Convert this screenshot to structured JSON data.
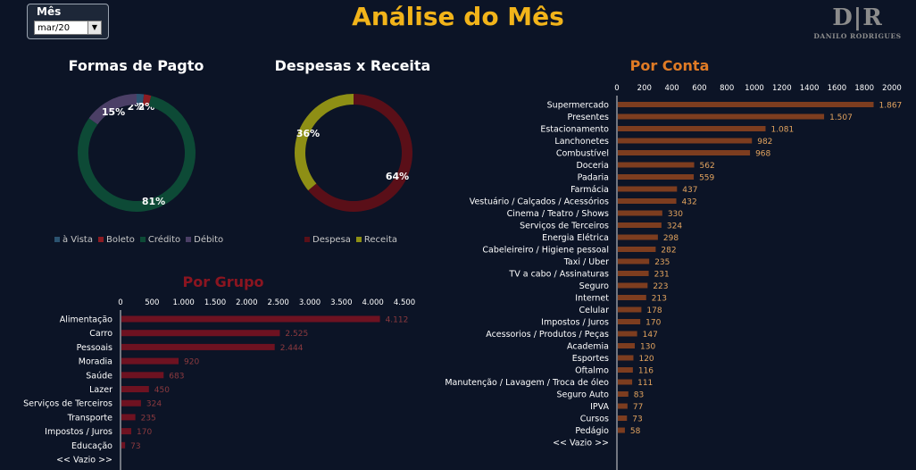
{
  "filter": {
    "label": "Mês",
    "value": "mar/20"
  },
  "title": "Análise do Mês",
  "logo": {
    "mark": "D|R",
    "name": "DANILO RODRIGUES"
  },
  "colors": {
    "title": "#f2b41a",
    "conta_title": "#e07b25",
    "grupo_title": "#8b1520",
    "conta_bar": "#7d3d1f",
    "conta_label": "#e3a45f",
    "grupo_bar": "#6e1221",
    "grupo_label": "#8c3a3f"
  },
  "chart_data": [
    {
      "type": "pie",
      "title": "Formas de Pagto",
      "donut": true,
      "labels": [
        "à Vista",
        "Boleto",
        "Crédito",
        "Débito"
      ],
      "values": [
        2,
        2,
        81,
        15
      ],
      "value_labels": [
        "2%",
        "2%",
        "81%",
        "15%"
      ],
      "colors": [
        "#2b5370",
        "#8c1b22",
        "#0d4a36",
        "#4b3f66"
      ],
      "legend": "bottom"
    },
    {
      "type": "pie",
      "title": "Despesas x Receita",
      "donut": true,
      "labels": [
        "Despesa",
        "Receita"
      ],
      "values": [
        64,
        36
      ],
      "value_labels": [
        "64%",
        "36%"
      ],
      "colors": [
        "#5a0f18",
        "#8e8f15"
      ],
      "legend": "bottom"
    },
    {
      "type": "bar",
      "orientation": "horizontal",
      "title": "Por Conta",
      "xlim": [
        0,
        2000
      ],
      "xticks": [
        "0",
        "200",
        "400",
        "600",
        "800",
        "1000",
        "1200",
        "1400",
        "1600",
        "1800",
        "2000"
      ],
      "categories": [
        "Supermercado",
        "Presentes",
        "Estacionamento",
        "Lanchonetes",
        "Combustível",
        "Doceria",
        "Padaria",
        "Farmácia",
        "Vestuário / Calçados / Acessórios",
        "Cinema / Teatro / Shows",
        "Serviços de Terceiros",
        "Energia Elétrica",
        "Cabeleireiro / Higiene pessoal",
        "Taxi / Uber",
        "TV a cabo / Assinaturas",
        "Seguro",
        "Internet",
        "Celular",
        "Impostos / Juros",
        "Acessorios / Produtos / Peças",
        "Academia",
        "Esportes",
        "Oftalmo",
        "Manutenção / Lavagem / Troca de óleo",
        "Seguro Auto",
        "IPVA",
        "Cursos",
        "Pedágio",
        "<< Vazio >>"
      ],
      "values": [
        1867,
        1507,
        1081,
        982,
        968,
        562,
        559,
        437,
        432,
        330,
        324,
        298,
        282,
        235,
        231,
        223,
        213,
        178,
        170,
        147,
        130,
        120,
        116,
        111,
        83,
        77,
        73,
        58,
        null
      ],
      "value_labels": [
        "1.867",
        "1.507",
        "1.081",
        "982",
        "968",
        "562",
        "559",
        "437",
        "432",
        "330",
        "324",
        "298",
        "282",
        "235",
        "231",
        "223",
        "213",
        "178",
        "170",
        "147",
        "130",
        "120",
        "116",
        "111",
        "83",
        "77",
        "73",
        "58",
        ""
      ]
    },
    {
      "type": "bar",
      "orientation": "horizontal",
      "title": "Por Grupo",
      "xlim": [
        0,
        4500
      ],
      "xticks": [
        "0",
        "500",
        "1.000",
        "1.500",
        "2.000",
        "2.500",
        "3.000",
        "3.500",
        "4.000",
        "4.500"
      ],
      "categories": [
        "Alimentação",
        "Carro",
        "Pessoais",
        "Moradia",
        "Saúde",
        "Lazer",
        "Serviços de Terceiros",
        "Transporte",
        "Impostos / Juros",
        "Educação",
        "<< Vazio >>"
      ],
      "values": [
        4112,
        2525,
        2444,
        920,
        683,
        450,
        324,
        235,
        170,
        73,
        null
      ],
      "value_labels": [
        "4.112",
        "2.525",
        "2.444",
        "920",
        "683",
        "450",
        "324",
        "235",
        "170",
        "73",
        ""
      ]
    }
  ]
}
